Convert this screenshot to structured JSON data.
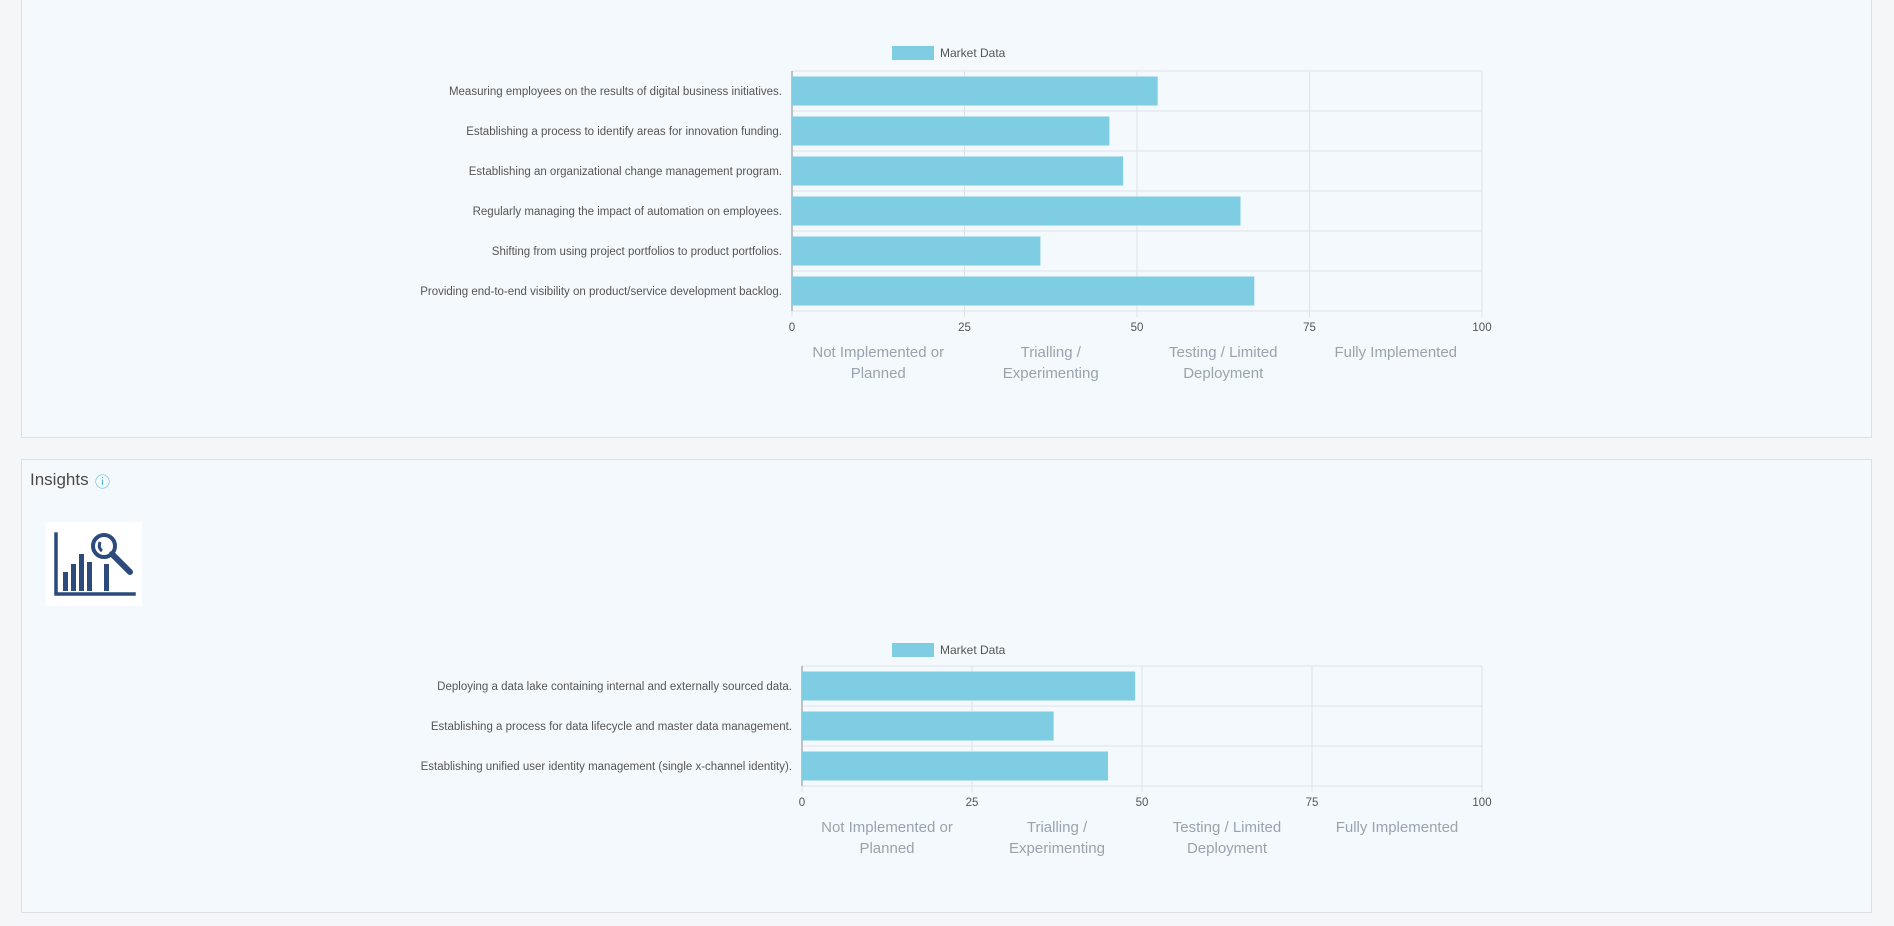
{
  "insights": {
    "title": "Insights",
    "info_icon": "info-circle-icon",
    "logo_icon": "bar-chart-magnifier-icon"
  },
  "chart_data": [
    {
      "type": "bar",
      "orientation": "horizontal",
      "legend": [
        "Market Data"
      ],
      "series": [
        {
          "name": "Market Data",
          "color": "#7ecde2",
          "values": [
            53,
            46,
            48,
            65,
            36,
            67
          ]
        }
      ],
      "categories": [
        "Measuring employees on the results of digital business initiatives.",
        "Establishing a process to identify areas for innovation funding.",
        "Establishing an organizational change management program.",
        "Regularly managing the impact of automation on employees.",
        "Shifting from using project portfolios to product portfolios.",
        "Providing end-to-end visibility on product/service development backlog."
      ],
      "xlim": [
        0,
        100
      ],
      "xticks": [
        "0",
        "25",
        "50",
        "75",
        "100"
      ],
      "bands": [
        [
          "Not Implemented or",
          "Planned"
        ],
        [
          "Trialling /",
          "Experimenting"
        ],
        [
          "Testing / Limited",
          "Deployment"
        ],
        [
          "Fully Implemented",
          ""
        ]
      ]
    },
    {
      "type": "bar",
      "orientation": "horizontal",
      "legend": [
        "Market Data"
      ],
      "series": [
        {
          "name": "Market Data",
          "color": "#7ecde2",
          "values": [
            49,
            37,
            45
          ]
        }
      ],
      "categories": [
        "Deploying a data lake containing internal and externally sourced data.",
        "Establishing a process for data lifecycle and master data management.",
        "Establishing unified user identity management (single x-channel identity)."
      ],
      "xlim": [
        0,
        100
      ],
      "xticks": [
        "0",
        "25",
        "50",
        "75",
        "100"
      ],
      "bands": [
        [
          "Not Implemented or",
          "Planned"
        ],
        [
          "Trialling /",
          "Experimenting"
        ],
        [
          "Testing / Limited",
          "Deployment"
        ],
        [
          "Fully Implemented",
          ""
        ]
      ]
    }
  ]
}
